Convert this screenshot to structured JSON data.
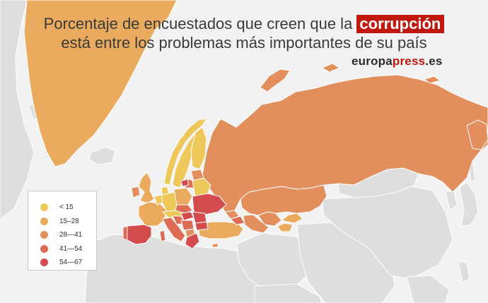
{
  "title": {
    "line1_before": "Porcentaje de encuestados que creen que la ",
    "highlight": "corrupción",
    "line2": "está entre los problemas más importantes de su país"
  },
  "brand": {
    "part1": "europa",
    "part2": "press",
    "part3": ".es"
  },
  "legend": {
    "items": [
      {
        "label": "< 15",
        "color": "#efc85c"
      },
      {
        "label": "15–28",
        "color": "#eaab5e"
      },
      {
        "label": "28—41",
        "color": "#e38f5d"
      },
      {
        "label": "41—54",
        "color": "#dd6b55"
      },
      {
        "label": "54—67",
        "color": "#d34b4d"
      }
    ]
  },
  "colors": {
    "background": "#f2f2f2",
    "no_data_land": "#dedede",
    "border": "#ffffff",
    "highlight": "#c0170f"
  }
}
